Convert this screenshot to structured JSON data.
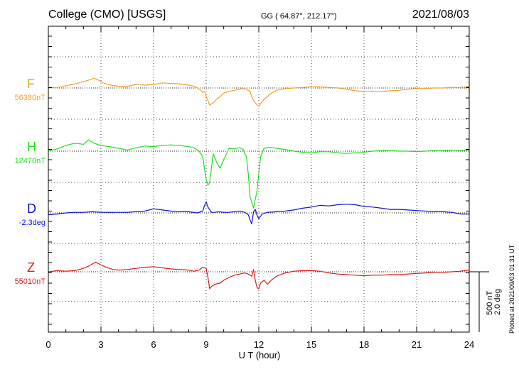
{
  "header": {
    "station": "College (CMO)  [USGS]",
    "coords": "GG ( 64.87°, 212.17°)",
    "date": "2021/08/03"
  },
  "footer": {
    "xlabel": "U T (hour)",
    "scale_nt": "500 nT",
    "scale_deg": "2.0 deg",
    "plotted": "Plotted at 2021/09/03 01:31  UT"
  },
  "chart_data": {
    "type": "line",
    "xlabel": "U T (hour)",
    "xlim": [
      0,
      24
    ],
    "x_ticks": [
      "0",
      "3",
      "6",
      "9",
      "12",
      "15",
      "18",
      "21",
      "24"
    ],
    "grid": true,
    "scale_bar": {
      "nt": 500,
      "deg": 2.0
    },
    "series": [
      {
        "name": "F",
        "baseline_label": "56380nT",
        "color": "#f0a020",
        "x": [
          0,
          0.5,
          1,
          1.5,
          2,
          2.3,
          2.6,
          2.8,
          3.2,
          3.6,
          4,
          4.5,
          5,
          5.5,
          6,
          6.5,
          7,
          7.5,
          8,
          8.3,
          8.5,
          8.7,
          8.8,
          8.9,
          9,
          9.1,
          9.2,
          9.4,
          9.6,
          9.8,
          10,
          10.3,
          10.6,
          10.9,
          11.1,
          11.3,
          11.5,
          11.6,
          11.7,
          11.8,
          11.9,
          12,
          12.1,
          12.3,
          12.6,
          12.8,
          13,
          13.5,
          14,
          14.5,
          15,
          15.5,
          16,
          16.5,
          17,
          17.5,
          18,
          18.5,
          19,
          19.5,
          20,
          20.5,
          21,
          21.5,
          22,
          22.5,
          23,
          23.5,
          24
        ],
        "y": [
          0,
          10,
          40,
          70,
          110,
          140,
          170,
          150,
          80,
          50,
          30,
          30,
          60,
          50,
          60,
          90,
          80,
          70,
          50,
          30,
          0,
          -40,
          -80,
          -60,
          -140,
          -220,
          -300,
          -260,
          -200,
          -150,
          -90,
          -60,
          -40,
          -20,
          -10,
          -20,
          -60,
          -150,
          -220,
          -260,
          -300,
          -320,
          -280,
          -200,
          -120,
          -80,
          -40,
          -10,
          0,
          10,
          20,
          20,
          10,
          0,
          -20,
          -50,
          -60,
          -60,
          -60,
          -50,
          -40,
          -20,
          -10,
          -10,
          0,
          0,
          10,
          10,
          30
        ]
      },
      {
        "name": "H",
        "baseline_label": "12470nT",
        "color": "#20e020",
        "x": [
          0,
          0.5,
          1,
          1.5,
          2,
          2.3,
          2.6,
          3,
          3.5,
          4,
          4.5,
          5,
          5.5,
          6,
          6.5,
          7,
          7.5,
          8,
          8.3,
          8.6,
          8.8,
          8.9,
          9,
          9.1,
          9.2,
          9.3,
          9.4,
          9.6,
          9.8,
          10,
          10.3,
          10.6,
          10.9,
          11.1,
          11.3,
          11.4,
          11.5,
          11.6,
          11.7,
          11.8,
          11.9,
          12,
          12.1,
          12.3,
          12.6,
          13,
          13.5,
          14,
          14.5,
          15,
          15.5,
          16,
          16.5,
          17,
          17.5,
          18,
          18.5,
          19,
          19.5,
          20,
          20.5,
          21,
          21.5,
          22,
          22.5,
          23,
          23.5,
          24
        ],
        "y": [
          0,
          40,
          100,
          140,
          120,
          200,
          140,
          100,
          80,
          50,
          20,
          60,
          90,
          80,
          100,
          110,
          100,
          80,
          60,
          0,
          -100,
          -300,
          -500,
          -600,
          -550,
          -300,
          -50,
          -200,
          -300,
          -150,
          50,
          40,
          60,
          30,
          -100,
          -400,
          -800,
          -900,
          -1000,
          -850,
          -700,
          -400,
          -100,
          50,
          70,
          50,
          30,
          0,
          -20,
          -30,
          -10,
          -10,
          -30,
          -40,
          -30,
          -20,
          0,
          10,
          10,
          0,
          0,
          -10,
          0,
          10,
          10,
          20,
          10,
          20
        ]
      },
      {
        "name": "D",
        "baseline_label": "-2.3deg",
        "color": "#1010d8",
        "x": [
          0,
          0.5,
          1,
          1.5,
          2,
          2.5,
          3,
          3.5,
          4,
          4.5,
          5,
          5.5,
          6,
          6.5,
          7,
          7.5,
          8,
          8.5,
          8.8,
          8.9,
          9,
          9.1,
          9.3,
          9.5,
          9.7,
          10,
          10.3,
          10.6,
          10.9,
          11.2,
          11.4,
          11.5,
          11.6,
          11.7,
          11.8,
          11.9,
          12,
          12.2,
          12.5,
          13,
          13.5,
          14,
          14.5,
          15,
          15.5,
          16,
          16.5,
          17,
          17.5,
          18,
          18.5,
          19,
          19.5,
          20,
          20.5,
          21,
          21.5,
          22,
          22.5,
          23,
          23.5,
          24
        ],
        "y": [
          -0.3,
          -0.2,
          0,
          0.1,
          0.1,
          0.2,
          0.1,
          0.1,
          0.1,
          0.1,
          0.2,
          0.3,
          0.7,
          0.5,
          0.3,
          0.2,
          0.2,
          0,
          0.3,
          1.2,
          1.9,
          1.0,
          0.1,
          0.1,
          0.2,
          0.1,
          0.1,
          0.2,
          0.3,
          0.1,
          -0.3,
          -1.2,
          -1.9,
          0.2,
          0.6,
          -0.4,
          -1.0,
          -0.2,
          0.1,
          0.2,
          0.3,
          0.5,
          0.8,
          1.0,
          1.3,
          1.2,
          1.4,
          1.5,
          1.4,
          1.1,
          1.0,
          0.8,
          0.6,
          0.6,
          0.5,
          0.4,
          0.3,
          0.2,
          0.2,
          0.1,
          -0.2,
          -0.2
        ]
      },
      {
        "name": "Z",
        "baseline_label": "55010nT",
        "color": "#e01818",
        "x": [
          0,
          0.5,
          1,
          1.5,
          2,
          2.3,
          2.7,
          3,
          3.3,
          3.7,
          4,
          4.5,
          5,
          5.5,
          6,
          6.5,
          7,
          7.5,
          8,
          8.3,
          8.6,
          8.8,
          9,
          9.1,
          9.2,
          9.3,
          9.5,
          9.8,
          10,
          10.3,
          10.6,
          10.9,
          11.2,
          11.4,
          11.5,
          11.6,
          11.7,
          11.8,
          11.9,
          12,
          12.1,
          12.3,
          12.5,
          12.7,
          13,
          13.5,
          14,
          14.5,
          15,
          15.5,
          16,
          16.5,
          17,
          17.5,
          18,
          18.5,
          19,
          19.5,
          20,
          20.5,
          21,
          21.5,
          22,
          22.5,
          23,
          23.5,
          24
        ],
        "y": [
          0,
          20,
          10,
          20,
          60,
          100,
          170,
          120,
          80,
          40,
          30,
          40,
          60,
          80,
          90,
          70,
          50,
          40,
          30,
          10,
          30,
          80,
          60,
          -100,
          -300,
          -260,
          -220,
          -200,
          -150,
          -100,
          -60,
          -40,
          -20,
          -40,
          -60,
          -80,
          40,
          -150,
          -280,
          -300,
          -200,
          -150,
          -220,
          -150,
          -80,
          -20,
          10,
          20,
          20,
          10,
          -20,
          -40,
          -50,
          -60,
          -70,
          -60,
          -60,
          -50,
          -50,
          -40,
          -30,
          -20,
          -10,
          -10,
          0,
          10,
          30
        ]
      }
    ]
  }
}
